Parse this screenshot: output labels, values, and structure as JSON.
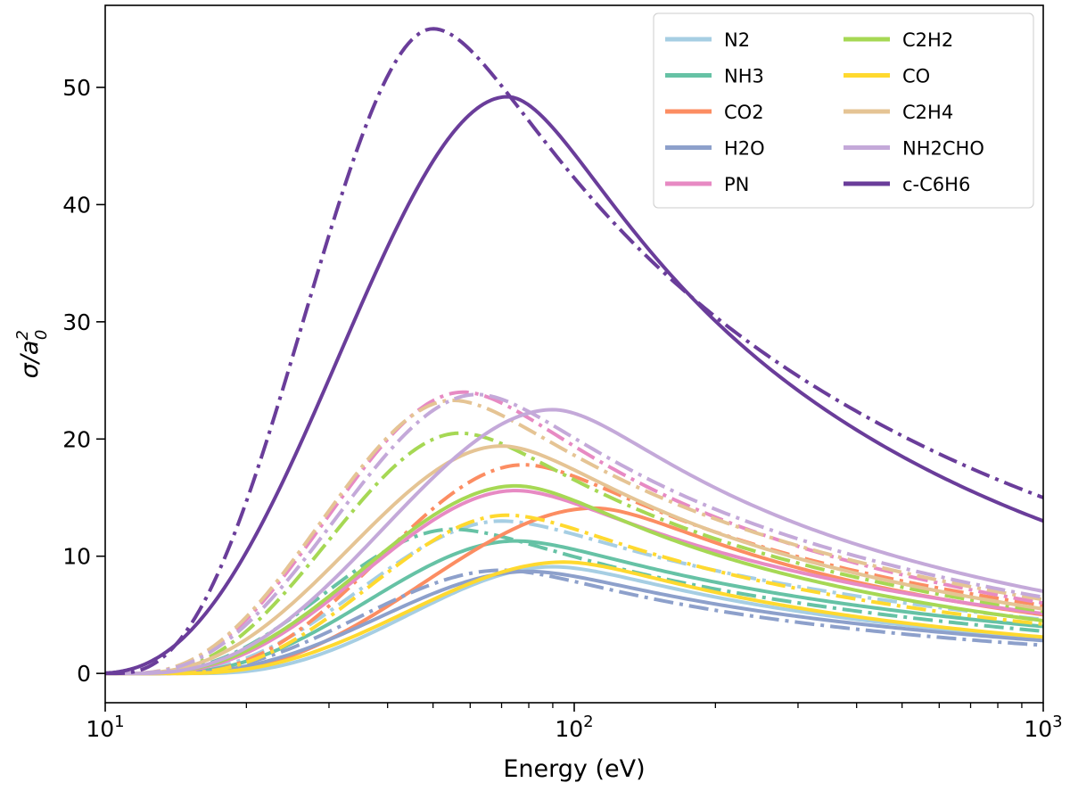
{
  "chart_data": {
    "type": "line",
    "xlabel": "Energy (eV)",
    "ylabel_main": "σ/a",
    "ylabel_sup": "2",
    "ylabel_sub": "0",
    "xscale": "log",
    "xlim": [
      10,
      1000
    ],
    "ylim": [
      -2.5,
      57
    ],
    "x_ticks": [
      {
        "value": 10,
        "base": "10",
        "exp": "1"
      },
      {
        "value": 100,
        "base": "10",
        "exp": "2"
      },
      {
        "value": 1000,
        "base": "10",
        "exp": "3"
      }
    ],
    "y_ticks": [
      0,
      10,
      20,
      30,
      40,
      50
    ],
    "grid": false,
    "legend_position": "top-right",
    "line_styles": {
      "solid": "solid",
      "dashdot": "dash-dot"
    },
    "series": [
      {
        "name": "N2",
        "color": "#a6cee3",
        "solid": {
          "threshold": 15.6,
          "peak_x": 90,
          "peak_y": 9.1,
          "end_y": 3.0
        },
        "dashdot": {
          "threshold": 12.5,
          "peak_x": 70,
          "peak_y": 13.0,
          "end_y": 4.6
        }
      },
      {
        "name": "NH3",
        "color": "#66c2a5",
        "solid": {
          "threshold": 12.5,
          "peak_x": 75,
          "peak_y": 11.3,
          "end_y": 4.0
        },
        "dashdot": {
          "threshold": 11.5,
          "peak_x": 55,
          "peak_y": 12.3,
          "end_y": 3.6
        }
      },
      {
        "name": "CO2",
        "color": "#fc8d62",
        "solid": {
          "threshold": 14.0,
          "peak_x": 110,
          "peak_y": 14.1,
          "end_y": 5.0
        },
        "dashdot": {
          "threshold": 13.5,
          "peak_x": 78,
          "peak_y": 17.8,
          "end_y": 5.8
        }
      },
      {
        "name": "H2O",
        "color": "#8da0cb",
        "solid": {
          "threshold": 13.0,
          "peak_x": 80,
          "peak_y": 8.7,
          "end_y": 2.8
        },
        "dashdot": {
          "threshold": 12.5,
          "peak_x": 70,
          "peak_y": 8.8,
          "end_y": 2.4
        }
      },
      {
        "name": "PN",
        "color": "#e78ac3",
        "solid": {
          "threshold": 11.8,
          "peak_x": 75,
          "peak_y": 15.6,
          "end_y": 5.1
        },
        "dashdot": {
          "threshold": 11.0,
          "peak_x": 58,
          "peak_y": 24.0,
          "end_y": 6.0
        }
      },
      {
        "name": "C2H2",
        "color": "#a6d854",
        "solid": {
          "threshold": 11.5,
          "peak_x": 75,
          "peak_y": 16.0,
          "end_y": 4.5
        },
        "dashdot": {
          "threshold": 11.5,
          "peak_x": 57,
          "peak_y": 20.5,
          "end_y": 5.3
        }
      },
      {
        "name": "CO",
        "color": "#ffd92f",
        "solid": {
          "threshold": 14.0,
          "peak_x": 95,
          "peak_y": 9.5,
          "end_y": 3.1
        },
        "dashdot": {
          "threshold": 13.5,
          "peak_x": 72,
          "peak_y": 13.5,
          "end_y": 4.2
        }
      },
      {
        "name": "C2H4",
        "color": "#e5c494",
        "solid": {
          "threshold": 11.0,
          "peak_x": 70,
          "peak_y": 19.4,
          "end_y": 5.5
        },
        "dashdot": {
          "threshold": 11.0,
          "peak_x": 55,
          "peak_y": 23.3,
          "end_y": 6.3
        }
      },
      {
        "name": "NH2CHO",
        "color": "#c4a9d9",
        "solid": {
          "threshold": 11.5,
          "peak_x": 90,
          "peak_y": 22.5,
          "end_y": 7.0
        },
        "dashdot": {
          "threshold": 11.0,
          "peak_x": 62,
          "peak_y": 23.8,
          "end_y": 6.5
        }
      },
      {
        "name": "c-C6H6",
        "color": "#6a3d9a",
        "solid": {
          "threshold": 9.3,
          "peak_x": 72,
          "peak_y": 49.2,
          "end_y": 13.0
        },
        "dashdot": {
          "threshold": 10.4,
          "peak_x": 50,
          "peak_y": 55.0,
          "end_y": 15.0
        }
      }
    ]
  }
}
